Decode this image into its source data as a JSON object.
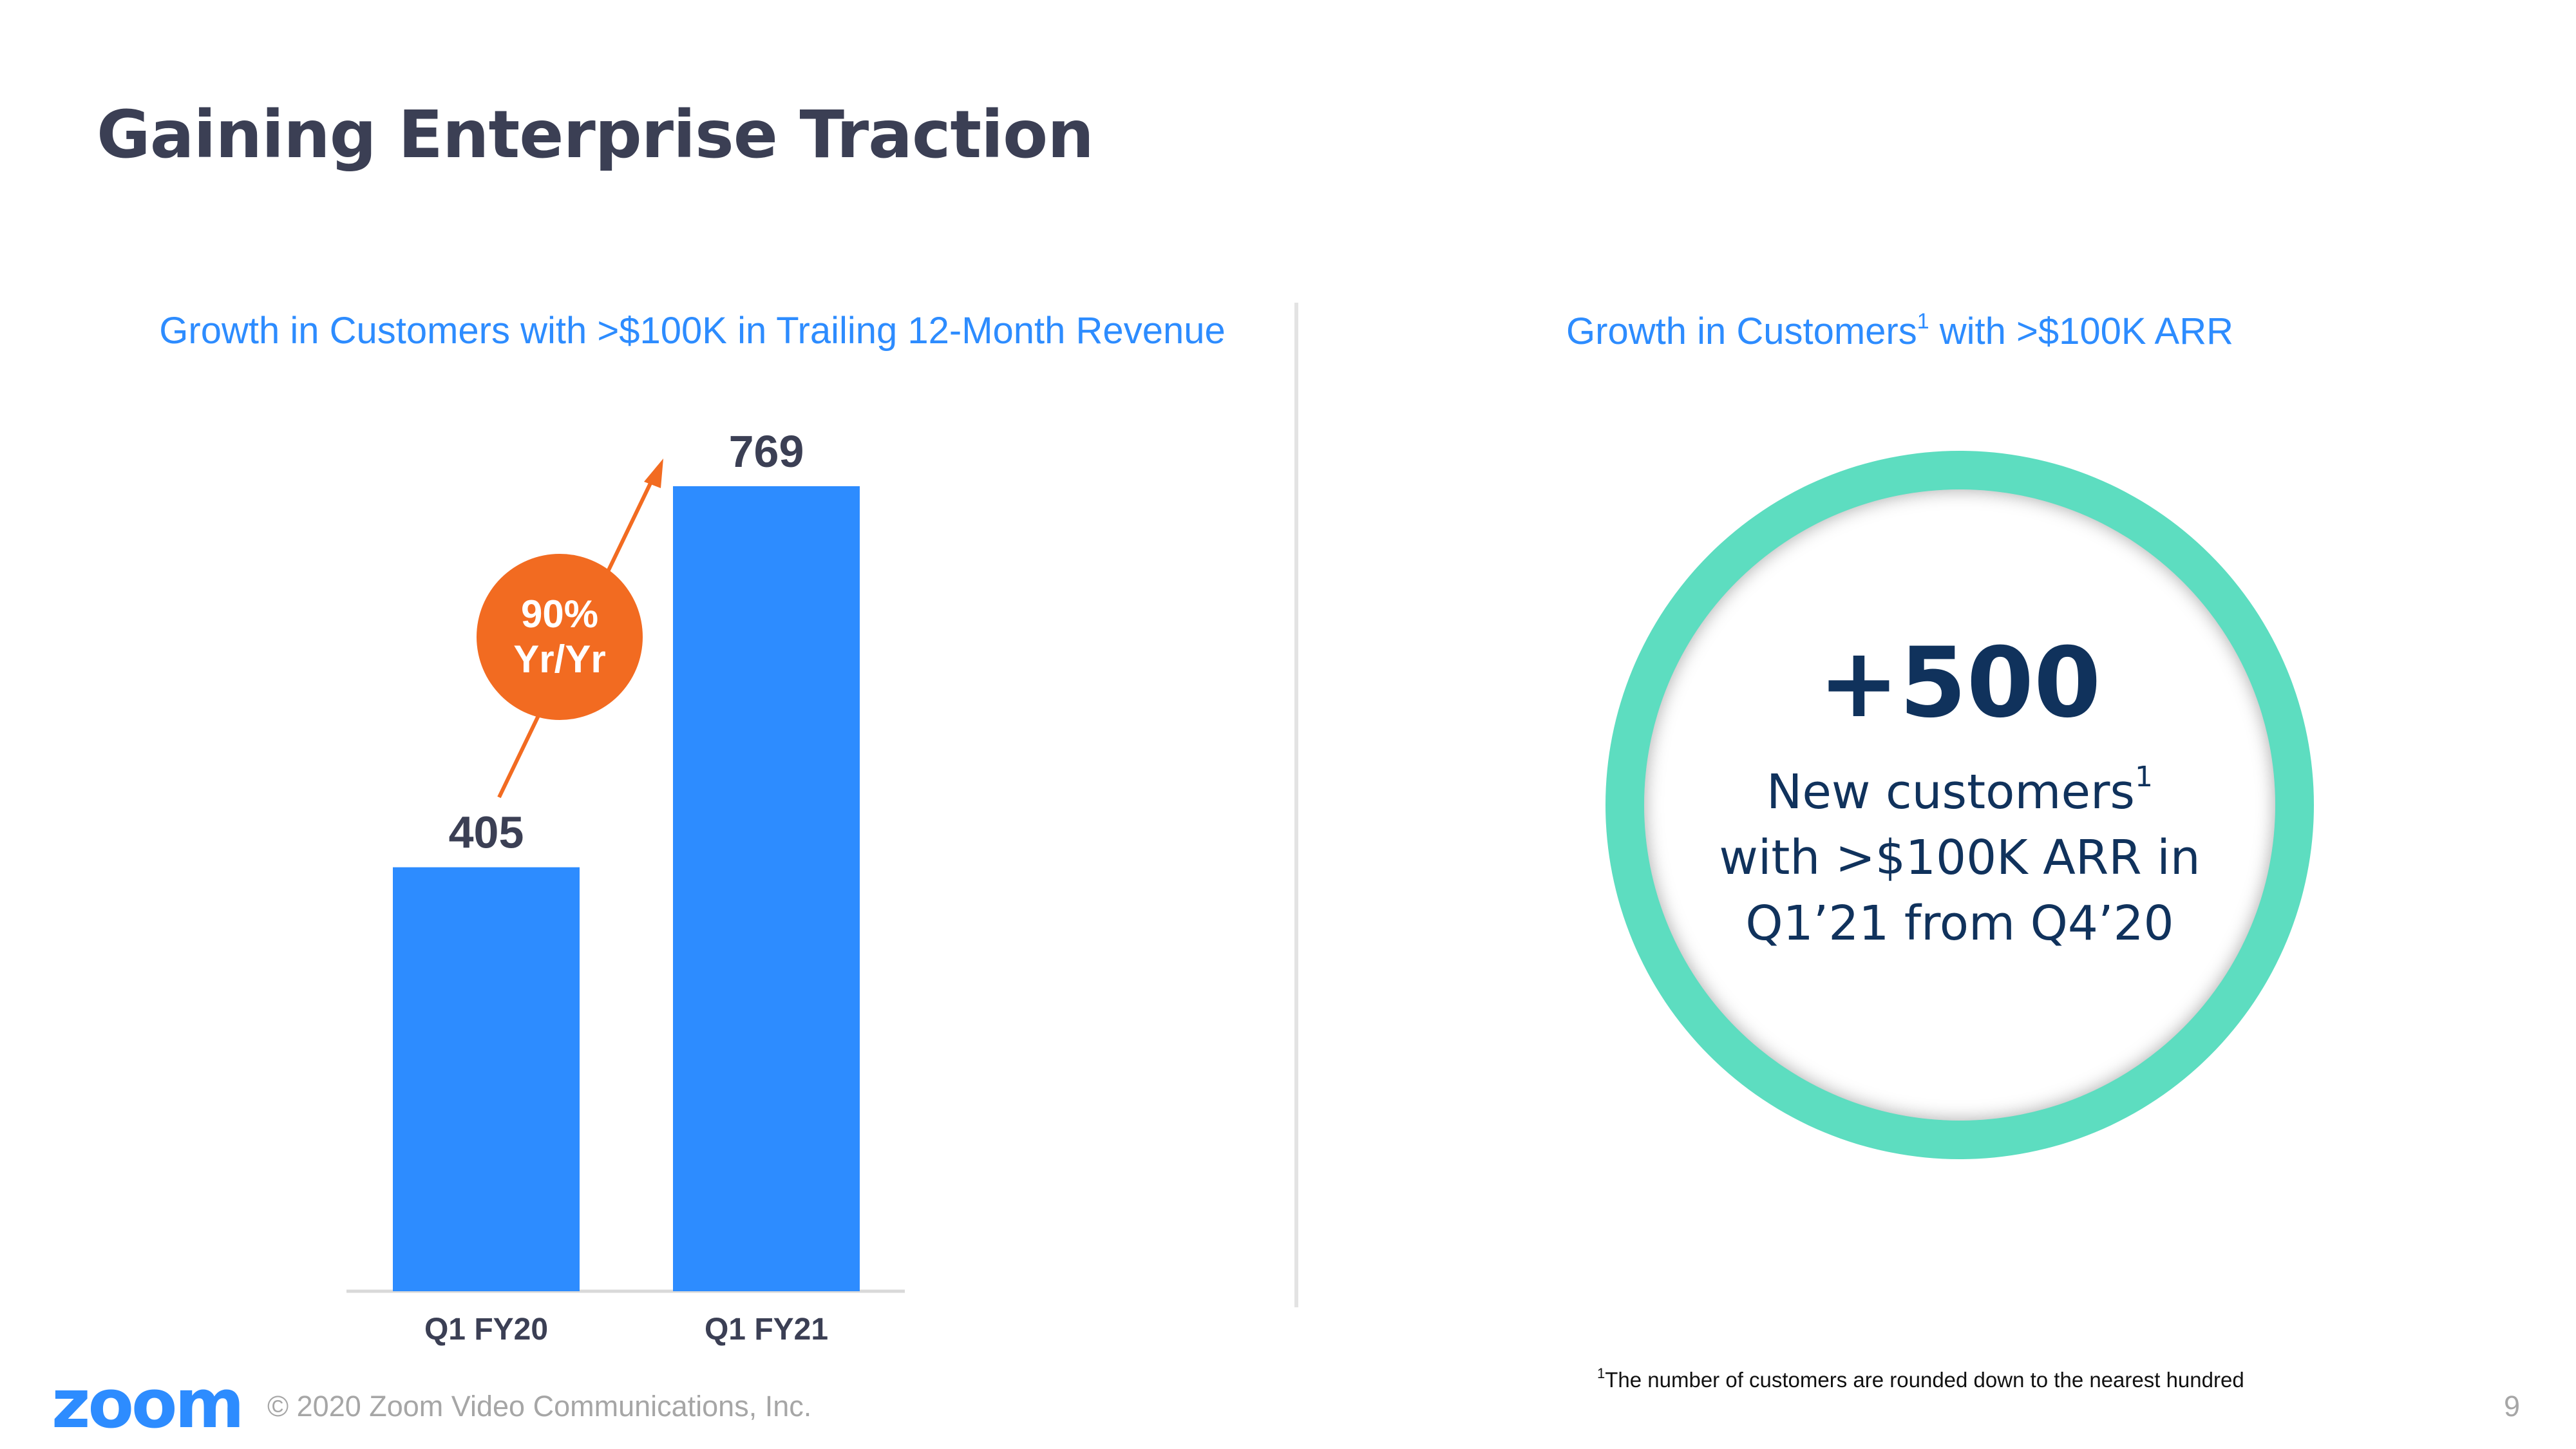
{
  "slide": {
    "title": "Gaining Enterprise Traction",
    "page_number": "9"
  },
  "left_panel": {
    "title": "Growth in Customers with >$100K in Trailing 12-Month Revenue"
  },
  "chart_data": {
    "type": "bar",
    "title": "Growth in Customers with >$100K in Trailing 12-Month Revenue",
    "categories": [
      "Q1 FY20",
      "Q1 FY21"
    ],
    "values": [
      405,
      769
    ],
    "data_labels": [
      "405",
      "769"
    ],
    "ylim": [
      0,
      800
    ],
    "grid": false,
    "legend": "none",
    "bar_color": "#2d8cff",
    "annotation": {
      "line1": "90%",
      "line2": "Yr/Yr",
      "color": "#f26b21",
      "arrow": "from first bar to second bar"
    }
  },
  "right_panel": {
    "title_pre": "Growth in Customers",
    "title_sup": "1",
    "title_post": " with >$100K ARR",
    "big_number": "+500",
    "line1": "New customers",
    "line1_sup": "1",
    "line2": "with >$100K ARR in",
    "line3": "Q1’21 from Q4’20",
    "ring_color": "#5dddc0",
    "text_color": "#10325c"
  },
  "footnote": {
    "marker": "1",
    "text": "The number of customers are rounded down to the nearest hundred"
  },
  "footer": {
    "logo": "zoom",
    "copyright": "© 2020 Zoom Video Communications, Inc."
  }
}
